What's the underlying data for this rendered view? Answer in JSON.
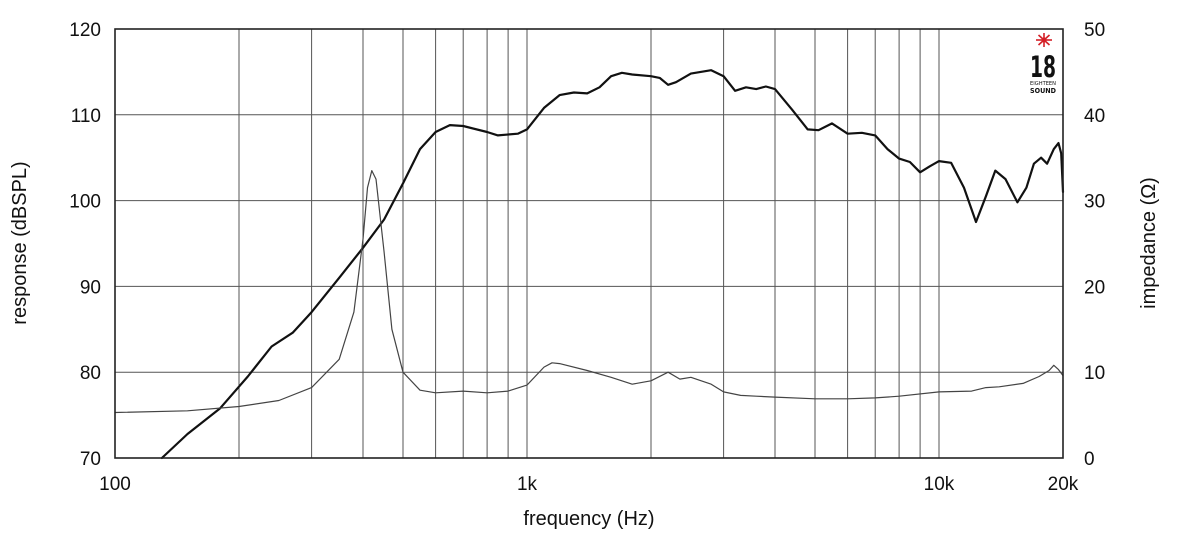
{
  "chart_data": {
    "type": "line",
    "xlabel": "frequency (Hz)",
    "ylabel": "response (dBSPL)",
    "y2label": "impedance (Ω)",
    "x_scale": "log",
    "xlim": [
      100,
      20000
    ],
    "ylim": [
      70,
      120
    ],
    "y2lim": [
      0,
      50
    ],
    "grid": true,
    "x_ticks": [
      {
        "value": 100,
        "label": "100"
      },
      {
        "value": 1000,
        "label": "1k"
      },
      {
        "value": 10000,
        "label": "10k"
      },
      {
        "value": 20000,
        "label": "20k"
      }
    ],
    "x_gridlines": [
      200,
      300,
      400,
      500,
      600,
      700,
      800,
      900,
      1000,
      2000,
      3000,
      4000,
      5000,
      6000,
      7000,
      8000,
      9000,
      10000
    ],
    "y_ticks": [
      {
        "value": 70,
        "label": "70"
      },
      {
        "value": 80,
        "label": "80"
      },
      {
        "value": 90,
        "label": "90"
      },
      {
        "value": 100,
        "label": "100"
      },
      {
        "value": 110,
        "label": "110"
      },
      {
        "value": 120,
        "label": "120"
      }
    ],
    "y2_ticks": [
      {
        "value": 0,
        "label": "0"
      },
      {
        "value": 10,
        "label": "10"
      },
      {
        "value": 20,
        "label": "20"
      },
      {
        "value": 30,
        "label": "30"
      },
      {
        "value": 40,
        "label": "40"
      },
      {
        "value": 50,
        "label": "50"
      }
    ],
    "series": [
      {
        "axis": "left",
        "color": "#111111",
        "width": 2.2,
        "points": [
          [
            130,
            70
          ],
          [
            150,
            72.8
          ],
          [
            180,
            75.8
          ],
          [
            210,
            79.5
          ],
          [
            240,
            83.0
          ],
          [
            270,
            84.6
          ],
          [
            300,
            87.0
          ],
          [
            350,
            91.0
          ],
          [
            400,
            94.5
          ],
          [
            450,
            97.8
          ],
          [
            500,
            102.0
          ],
          [
            550,
            106.0
          ],
          [
            600,
            108.0
          ],
          [
            650,
            108.8
          ],
          [
            700,
            108.7
          ],
          [
            800,
            108.0
          ],
          [
            850,
            107.6
          ],
          [
            950,
            107.8
          ],
          [
            1000,
            108.3
          ],
          [
            1100,
            110.8
          ],
          [
            1200,
            112.3
          ],
          [
            1300,
            112.6
          ],
          [
            1400,
            112.5
          ],
          [
            1500,
            113.2
          ],
          [
            1600,
            114.5
          ],
          [
            1700,
            114.9
          ],
          [
            1800,
            114.7
          ],
          [
            2000,
            114.5
          ],
          [
            2100,
            114.3
          ],
          [
            2200,
            113.5
          ],
          [
            2300,
            113.8
          ],
          [
            2500,
            114.8
          ],
          [
            2800,
            115.2
          ],
          [
            3000,
            114.5
          ],
          [
            3200,
            112.8
          ],
          [
            3400,
            113.2
          ],
          [
            3600,
            113.0
          ],
          [
            3800,
            113.3
          ],
          [
            4000,
            113.0
          ],
          [
            4400,
            110.6
          ],
          [
            4800,
            108.3
          ],
          [
            5100,
            108.2
          ],
          [
            5500,
            109.0
          ],
          [
            6000,
            107.8
          ],
          [
            6500,
            107.9
          ],
          [
            7000,
            107.6
          ],
          [
            7500,
            106.0
          ],
          [
            8000,
            104.9
          ],
          [
            8500,
            104.5
          ],
          [
            9000,
            103.3
          ],
          [
            9500,
            104.0
          ],
          [
            10000,
            104.6
          ],
          [
            10700,
            104.4
          ],
          [
            11500,
            101.5
          ],
          [
            12300,
            97.5
          ],
          [
            13000,
            100.5
          ],
          [
            13700,
            103.5
          ],
          [
            14500,
            102.5
          ],
          [
            15500,
            99.8
          ],
          [
            16300,
            101.5
          ],
          [
            17000,
            104.3
          ],
          [
            17700,
            105.0
          ],
          [
            18300,
            104.3
          ],
          [
            19000,
            106.0
          ],
          [
            19500,
            106.7
          ],
          [
            19800,
            105.5
          ],
          [
            20000,
            101.0
          ]
        ]
      },
      {
        "axis": "right",
        "color": "#444444",
        "width": 1.2,
        "points": [
          [
            100,
            5.3
          ],
          [
            150,
            5.5
          ],
          [
            200,
            6.0
          ],
          [
            250,
            6.7
          ],
          [
            300,
            8.2
          ],
          [
            350,
            11.5
          ],
          [
            380,
            17.0
          ],
          [
            400,
            25.5
          ],
          [
            410,
            31.5
          ],
          [
            420,
            33.5
          ],
          [
            430,
            32.5
          ],
          [
            450,
            24.0
          ],
          [
            470,
            15.0
          ],
          [
            500,
            10.0
          ],
          [
            550,
            7.9
          ],
          [
            600,
            7.6
          ],
          [
            700,
            7.8
          ],
          [
            800,
            7.6
          ],
          [
            900,
            7.8
          ],
          [
            1000,
            8.5
          ],
          [
            1100,
            10.6
          ],
          [
            1150,
            11.1
          ],
          [
            1200,
            11.0
          ],
          [
            1400,
            10.2
          ],
          [
            1600,
            9.4
          ],
          [
            1800,
            8.6
          ],
          [
            2000,
            9.0
          ],
          [
            2200,
            10.0
          ],
          [
            2350,
            9.2
          ],
          [
            2500,
            9.4
          ],
          [
            2800,
            8.6
          ],
          [
            3000,
            7.7
          ],
          [
            3300,
            7.3
          ],
          [
            3600,
            7.2
          ],
          [
            4000,
            7.1
          ],
          [
            5000,
            6.9
          ],
          [
            6000,
            6.9
          ],
          [
            7000,
            7.0
          ],
          [
            8000,
            7.2
          ],
          [
            10000,
            7.7
          ],
          [
            12000,
            7.8
          ],
          [
            13000,
            8.2
          ],
          [
            14000,
            8.3
          ],
          [
            16000,
            8.7
          ],
          [
            17500,
            9.5
          ],
          [
            18500,
            10.2
          ],
          [
            19000,
            10.8
          ],
          [
            19500,
            10.3
          ],
          [
            20000,
            9.6
          ]
        ]
      }
    ]
  },
  "logo": {
    "number": "18",
    "line1": "EIGHTEEN",
    "line2": "SOUND"
  }
}
